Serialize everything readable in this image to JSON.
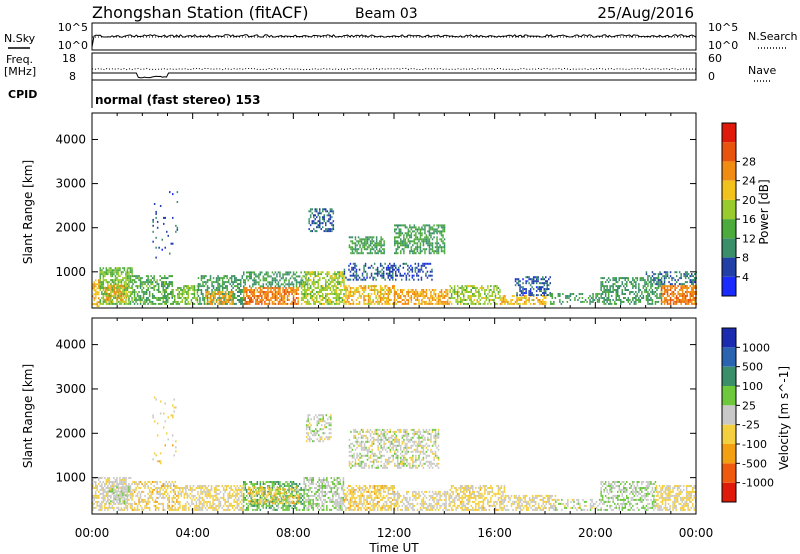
{
  "header": {
    "title": "Zhongshan Station (fitACF)",
    "beam": "Beam 03",
    "date": "25/Aug/2016"
  },
  "top_panels": {
    "nsky_label": "N.Sky",
    "nsearch_label": "N.Search",
    "noise_ticks_left": [
      "10^5",
      "10^0"
    ],
    "noise_ticks_right": [
      "10^5",
      "10^0"
    ],
    "freq_label_1": "Freq.",
    "freq_label_2": "[MHz]",
    "freq_ticks": [
      "18",
      "8"
    ],
    "nave_label": "Nave",
    "nave_ticks": [
      "60",
      "0"
    ],
    "cpid_label": "CPID",
    "cpid_text": "normal (fast stereo) 153"
  },
  "colors": {
    "power": [
      "#1a2bff",
      "#2040a8",
      "#3a8f6a",
      "#4cab3c",
      "#9acb2c",
      "#f2c21c",
      "#f08c12",
      "#e8540e",
      "#e01a0a"
    ],
    "velocity": [
      "#e01a0a",
      "#f05a0e",
      "#f2a012",
      "#f4d040",
      "#c8c8c8",
      "#6ec83c",
      "#3a8f6a",
      "#2a64b0",
      "#1a2bb0"
    ]
  },
  "chart_data": [
    {
      "type": "heatmap",
      "name": "power",
      "ylabel": "Slant Range [km]",
      "yticks": [
        "1000",
        "2000",
        "3000",
        "4000"
      ],
      "ylim": [
        180,
        4600
      ],
      "xlim": [
        0,
        24
      ],
      "colorbar_label": "Power [dB]",
      "colorbar_ticks": [
        "4",
        "8",
        "12",
        "16",
        "20",
        "24",
        "28"
      ],
      "colorbar_range": [
        0,
        32
      ],
      "regions": [
        {
          "t0": 0.0,
          "t1": 0.3,
          "r0": 200,
          "r1": 800,
          "v": 20,
          "density": 0.6
        },
        {
          "t0": 0.3,
          "t1": 1.6,
          "r0": 250,
          "r1": 1100,
          "v": 14,
          "density": 0.7
        },
        {
          "t0": 0.5,
          "t1": 1.4,
          "r0": 300,
          "r1": 700,
          "v": 22,
          "density": 0.5
        },
        {
          "t0": 1.6,
          "t1": 3.2,
          "r0": 250,
          "r1": 900,
          "v": 12,
          "density": 0.55
        },
        {
          "t0": 2.4,
          "t1": 3.4,
          "r0": 1300,
          "r1": 2800,
          "v": 6,
          "density": 0.05
        },
        {
          "t0": 3.2,
          "t1": 4.2,
          "r0": 250,
          "r1": 700,
          "v": 14,
          "density": 0.6
        },
        {
          "t0": 4.2,
          "t1": 6.0,
          "r0": 250,
          "r1": 900,
          "v": 10,
          "density": 0.55
        },
        {
          "t0": 4.5,
          "t1": 5.6,
          "r0": 250,
          "r1": 550,
          "v": 22,
          "density": 0.6
        },
        {
          "t0": 6.0,
          "t1": 8.2,
          "r0": 250,
          "r1": 650,
          "v": 24,
          "density": 0.7
        },
        {
          "t0": 6.0,
          "t1": 8.6,
          "r0": 650,
          "r1": 1000,
          "v": 10,
          "density": 0.45
        },
        {
          "t0": 8.6,
          "t1": 9.6,
          "r0": 1900,
          "r1": 2400,
          "v": 7,
          "density": 0.5
        },
        {
          "t0": 8.3,
          "t1": 10.0,
          "r0": 250,
          "r1": 1000,
          "v": 16,
          "density": 0.6
        },
        {
          "t0": 10.0,
          "t1": 12.0,
          "r0": 250,
          "r1": 700,
          "v": 20,
          "density": 0.6
        },
        {
          "t0": 10.0,
          "t1": 13.5,
          "r0": 800,
          "r1": 1200,
          "v": 6,
          "density": 0.35
        },
        {
          "t0": 10.2,
          "t1": 11.6,
          "r0": 1400,
          "r1": 1800,
          "v": 11,
          "density": 0.6
        },
        {
          "t0": 12.0,
          "t1": 14.0,
          "r0": 1400,
          "r1": 2050,
          "v": 11,
          "density": 0.6
        },
        {
          "t0": 12.0,
          "t1": 14.2,
          "r0": 250,
          "r1": 600,
          "v": 22,
          "density": 0.6
        },
        {
          "t0": 14.2,
          "t1": 16.2,
          "r0": 250,
          "r1": 700,
          "v": 16,
          "density": 0.55
        },
        {
          "t0": 16.2,
          "t1": 18.0,
          "r0": 250,
          "r1": 450,
          "v": 20,
          "density": 0.55
        },
        {
          "t0": 16.8,
          "t1": 18.2,
          "r0": 450,
          "r1": 900,
          "v": 6,
          "density": 0.5
        },
        {
          "t0": 18.2,
          "t1": 20.2,
          "r0": 250,
          "r1": 500,
          "v": 10,
          "density": 0.35
        },
        {
          "t0": 20.2,
          "t1": 22.6,
          "r0": 250,
          "r1": 850,
          "v": 10,
          "density": 0.5
        },
        {
          "t0": 22.6,
          "t1": 24.0,
          "r0": 250,
          "r1": 700,
          "v": 24,
          "density": 0.7
        },
        {
          "t0": 22.0,
          "t1": 24.0,
          "r0": 700,
          "r1": 1000,
          "v": 8,
          "density": 0.4
        }
      ]
    },
    {
      "type": "heatmap",
      "name": "velocity",
      "ylabel": "Slant Range [km]",
      "yticks": [
        "1000",
        "2000",
        "3000",
        "4000"
      ],
      "ylim": [
        180,
        4600
      ],
      "xlim": [
        0,
        24
      ],
      "colorbar_label": "Velocity [m s^-1]",
      "colorbar_ticks": [
        "-1000",
        "-500",
        "-100",
        "-25",
        "25",
        "100",
        "500",
        "1000"
      ],
      "colorbar_range": [
        -1500,
        1500
      ],
      "regions": [
        {
          "t0": 0.0,
          "t1": 1.6,
          "r0": 250,
          "r1": 1000,
          "v": -100,
          "density": 0.6
        },
        {
          "t0": 0.6,
          "t1": 1.5,
          "r0": 400,
          "r1": 800,
          "v": 120,
          "density": 0.5
        },
        {
          "t0": 1.6,
          "t1": 3.4,
          "r0": 250,
          "r1": 900,
          "v": -300,
          "density": 0.5
        },
        {
          "t0": 2.4,
          "t1": 3.4,
          "r0": 1300,
          "r1": 2800,
          "v": -300,
          "density": 0.05
        },
        {
          "t0": 3.4,
          "t1": 6.0,
          "r0": 250,
          "r1": 800,
          "v": -200,
          "density": 0.55
        },
        {
          "t0": 6.0,
          "t1": 8.4,
          "r0": 250,
          "r1": 900,
          "v": 400,
          "density": 0.55
        },
        {
          "t0": 6.2,
          "t1": 8.2,
          "r0": 400,
          "r1": 800,
          "v": -400,
          "density": 0.35
        },
        {
          "t0": 8.5,
          "t1": 9.5,
          "r0": 1800,
          "r1": 2400,
          "v": 20,
          "density": 0.4
        },
        {
          "t0": 8.4,
          "t1": 10.0,
          "r0": 250,
          "r1": 1000,
          "v": 120,
          "density": 0.55
        },
        {
          "t0": 10.0,
          "t1": 12.0,
          "r0": 250,
          "r1": 800,
          "v": -300,
          "density": 0.6
        },
        {
          "t0": 10.2,
          "t1": 13.8,
          "r0": 1200,
          "r1": 2100,
          "v": 0,
          "density": 0.5
        },
        {
          "t0": 12.0,
          "t1": 14.2,
          "r0": 250,
          "r1": 700,
          "v": -120,
          "density": 0.55
        },
        {
          "t0": 14.2,
          "t1": 16.4,
          "r0": 250,
          "r1": 800,
          "v": -250,
          "density": 0.55
        },
        {
          "t0": 16.4,
          "t1": 18.4,
          "r0": 250,
          "r1": 600,
          "v": -150,
          "density": 0.55
        },
        {
          "t0": 18.4,
          "t1": 20.2,
          "r0": 250,
          "r1": 500,
          "v": 10,
          "density": 0.35
        },
        {
          "t0": 20.2,
          "t1": 22.4,
          "r0": 250,
          "r1": 900,
          "v": 150,
          "density": 0.5
        },
        {
          "t0": 22.4,
          "t1": 24.0,
          "r0": 250,
          "r1": 800,
          "v": -200,
          "density": 0.6
        }
      ]
    }
  ],
  "x_axis": {
    "ticks": [
      "00:00",
      "04:00",
      "08:00",
      "12:00",
      "16:00",
      "20:00",
      "00:00"
    ],
    "label": "Time UT"
  }
}
